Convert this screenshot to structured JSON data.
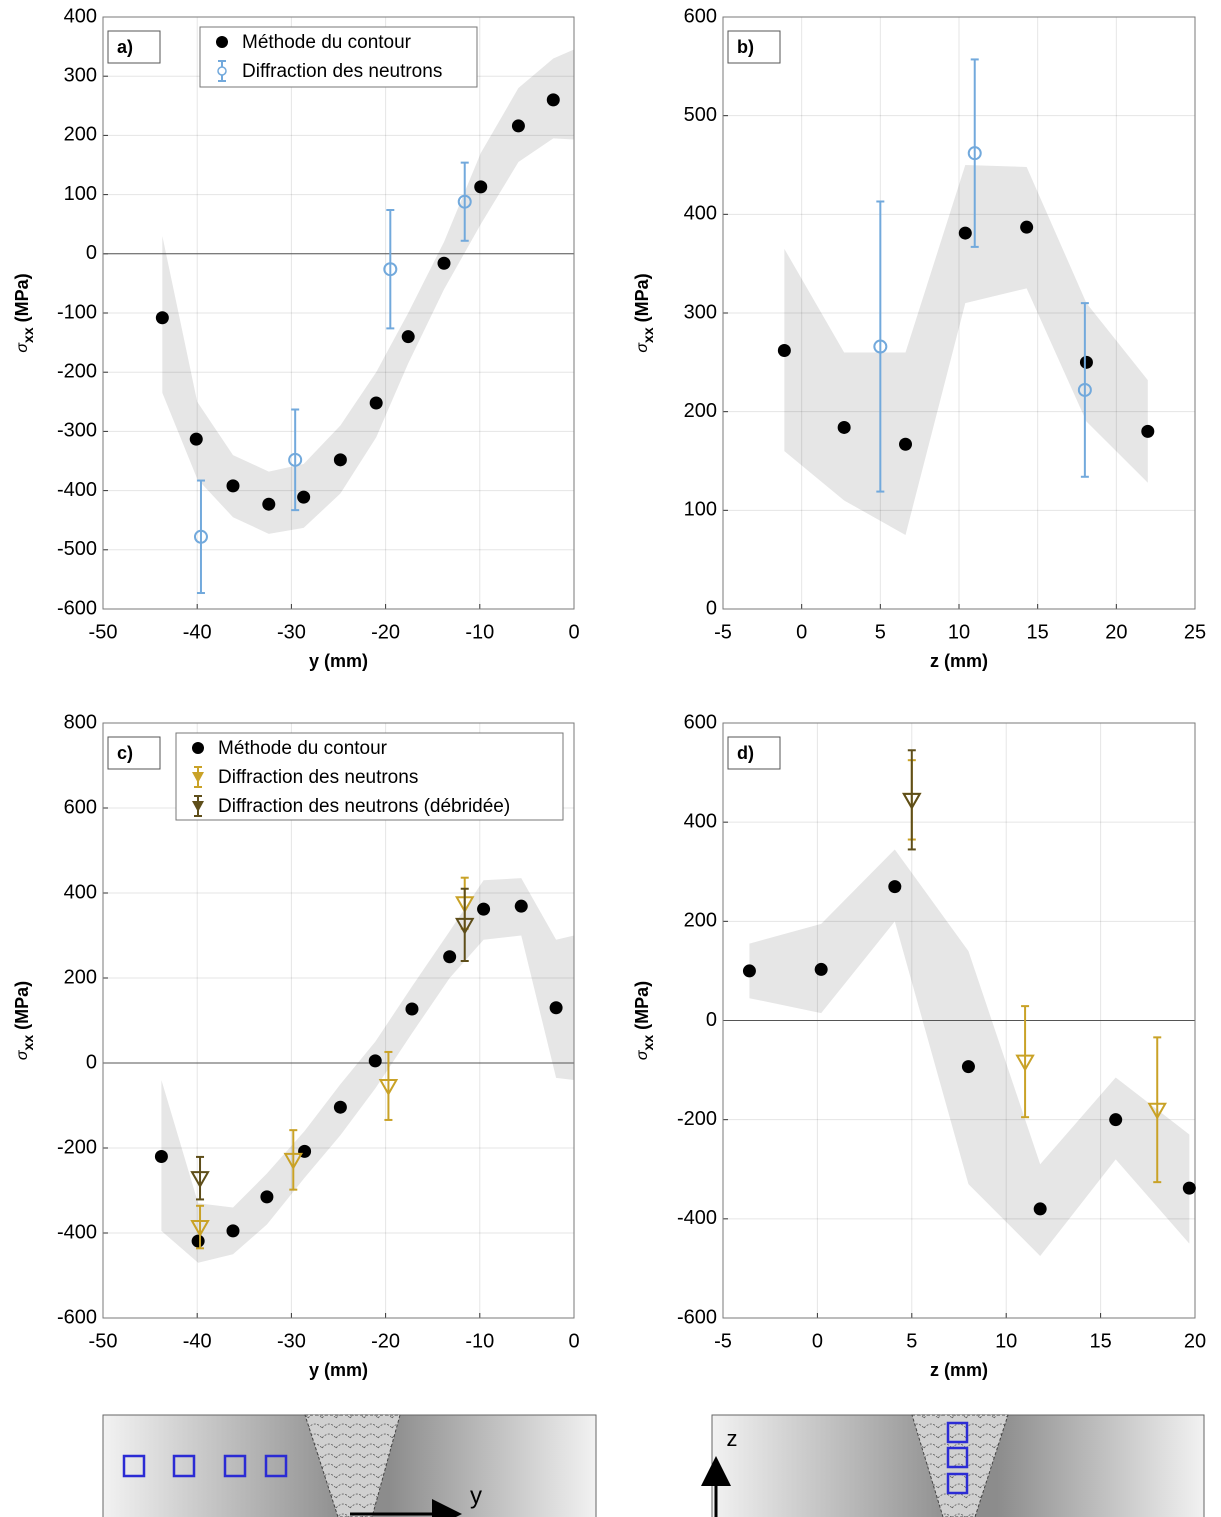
{
  "chart_data": [
    {
      "type": "scatter",
      "panel_label": "a)",
      "xlabel": "y (mm)",
      "ylabel": [
        "σ",
        "xx",
        "(MPa)"
      ],
      "xlim": [
        -50,
        0
      ],
      "ylim": [
        -600,
        400
      ],
      "xticks": [
        -50,
        -40,
        -30,
        -20,
        -10,
        0
      ],
      "yticks": [
        -600,
        -500,
        -400,
        -300,
        -200,
        -100,
        0,
        100,
        200,
        300,
        400
      ],
      "grid": true,
      "zero_line": true,
      "legend": "upper left",
      "band": {
        "color": "#e6e6e6",
        "x": [
          -43.7,
          -40.0,
          -36.2,
          -32.4,
          -28.7,
          -24.8,
          -21.0,
          -17.6,
          -13.8,
          -9.9,
          -5.9,
          -2.2,
          0
        ],
        "upper": [
          30,
          -250,
          -340,
          -368,
          -355,
          -290,
          -200,
          -100,
          20,
          170,
          280,
          330,
          345
        ],
        "lower": [
          -235,
          -380,
          -445,
          -473,
          -463,
          -405,
          -310,
          -185,
          -60,
          50,
          155,
          195,
          193
        ]
      },
      "series": [
        {
          "name": "Méthode du contour",
          "color": "#000000",
          "marker": "filled-circle",
          "x": [
            -43.7,
            -40.1,
            -36.2,
            -32.4,
            -28.7,
            -24.8,
            -21.0,
            -17.6,
            -13.8,
            -9.9,
            -5.9,
            -2.2
          ],
          "values": [
            -108,
            -313,
            -392,
            -423,
            -411,
            -348,
            -252,
            -140,
            -16,
            113,
            216,
            260
          ]
        },
        {
          "name": "Diffraction des neutrons",
          "color": "#72a9dc",
          "marker": "open-circle",
          "x": [
            -39.6,
            -29.6,
            -19.5,
            -11.6
          ],
          "values": [
            -478,
            -348,
            -26,
            88
          ],
          "errors": [
            95,
            85,
            100,
            66
          ]
        }
      ]
    },
    {
      "type": "scatter",
      "panel_label": "b)",
      "xlabel": "z (mm)",
      "ylabel": [
        "σ",
        "xx",
        "(MPa)"
      ],
      "xlim": [
        -5,
        25
      ],
      "ylim": [
        0,
        600
      ],
      "xticks": [
        -5,
        0,
        5,
        10,
        15,
        20,
        25
      ],
      "yticks": [
        0,
        100,
        200,
        300,
        400,
        500,
        600
      ],
      "grid": true,
      "zero_line": false,
      "legend": false,
      "band": {
        "color": "#e6e6e6",
        "x": [
          -1.1,
          2.7,
          6.6,
          10.4,
          14.3,
          18.1,
          22.0
        ],
        "upper": [
          365,
          260,
          260,
          450,
          448,
          310,
          232
        ],
        "lower": [
          160,
          110,
          75,
          310,
          325,
          190,
          128
        ]
      },
      "series": [
        {
          "color": "#000000",
          "marker": "filled-circle",
          "x": [
            -1.1,
            2.7,
            6.6,
            10.4,
            14.3,
            18.1,
            22.0
          ],
          "values": [
            262,
            184,
            167,
            381,
            387,
            250,
            180
          ]
        },
        {
          "color": "#72a9dc",
          "marker": "open-circle",
          "x": [
            5.0,
            11.0,
            18.0
          ],
          "values": [
            266,
            462,
            222
          ],
          "errors": [
            147,
            95,
            88
          ]
        }
      ]
    },
    {
      "type": "scatter",
      "panel_label": "c)",
      "xlabel": "y (mm)",
      "ylabel": [
        "σ",
        "xx",
        "(MPa)"
      ],
      "xlim": [
        -50,
        0
      ],
      "ylim": [
        -600,
        800
      ],
      "xticks": [
        -50,
        -40,
        -30,
        -20,
        -10,
        0
      ],
      "yticks": [
        -600,
        -400,
        -200,
        0,
        200,
        400,
        600,
        800
      ],
      "grid": true,
      "zero_line": true,
      "legend": "upper left",
      "band": {
        "color": "#e6e6e6",
        "x": [
          -43.8,
          -39.9,
          -36.2,
          -32.6,
          -28.6,
          -24.8,
          -21.1,
          -17.2,
          -13.2,
          -9.6,
          -5.6,
          -1.9,
          0
        ],
        "upper": [
          -40,
          -330,
          -340,
          -260,
          -160,
          -50,
          50,
          180,
          310,
          430,
          435,
          290,
          300
        ],
        "lower": [
          -395,
          -470,
          -450,
          -380,
          -270,
          -170,
          -60,
          70,
          200,
          290,
          300,
          -35,
          -40
        ]
      },
      "series": [
        {
          "name": "Méthode du contour",
          "color": "#000000",
          "marker": "filled-circle",
          "x": [
            -43.8,
            -39.9,
            -36.2,
            -32.6,
            -28.6,
            -24.8,
            -21.1,
            -17.2,
            -13.2,
            -9.6,
            -5.6,
            -1.9
          ],
          "values": [
            -220,
            -419,
            -395,
            -315,
            -208,
            -104,
            5,
            127,
            250,
            362,
            369,
            130
          ]
        },
        {
          "name": "Diffraction des neutrons",
          "color": "#c9a227",
          "marker": "open-triangle-down",
          "x": [
            -39.7,
            -29.8,
            -19.7,
            -11.6
          ],
          "values": [
            -386,
            -228,
            -54,
            376
          ],
          "errors": [
            50,
            70,
            80,
            60
          ]
        },
        {
          "name": "Diffraction des neutrons (débridée)",
          "color": "#5e4e1a",
          "marker": "open-triangle-down",
          "x": [
            -39.7,
            -11.6
          ],
          "values": [
            -271,
            325
          ],
          "errors": [
            50,
            85
          ]
        }
      ]
    },
    {
      "type": "scatter",
      "panel_label": "d)",
      "xlabel": "z (mm)",
      "ylabel": [
        "σ",
        "xx",
        "(MPa)"
      ],
      "xlim": [
        -5,
        20
      ],
      "ylim": [
        -600,
        600
      ],
      "xticks": [
        -5,
        0,
        5,
        10,
        15,
        20
      ],
      "yticks": [
        -600,
        -400,
        -200,
        0,
        200,
        400,
        600
      ],
      "grid": true,
      "zero_line": true,
      "legend": false,
      "band": {
        "color": "#e6e6e6",
        "x": [
          -3.6,
          0.2,
          4.1,
          8.0,
          11.8,
          15.8,
          19.7
        ],
        "upper": [
          155,
          195,
          345,
          140,
          -290,
          -115,
          -230
        ],
        "lower": [
          45,
          15,
          200,
          -330,
          -475,
          -280,
          -450
        ]
      },
      "series": [
        {
          "color": "#000000",
          "marker": "filled-circle",
          "x": [
            -3.6,
            0.2,
            4.1,
            8.0,
            11.8,
            15.8,
            19.7
          ],
          "values": [
            100,
            103,
            270,
            -93,
            -380,
            -200,
            -338
          ]
        },
        {
          "color": "#c9a227",
          "marker": "open-triangle-down",
          "x": [
            5.0,
            11.0,
            18.0
          ],
          "values": [
            445,
            -83,
            -180
          ],
          "errors": [
            80,
            112,
            146
          ]
        },
        {
          "color": "#5e4e1a",
          "marker": "open-triangle-down",
          "x": [
            5.0
          ],
          "values": [
            445
          ],
          "errors": [
            100
          ]
        }
      ]
    }
  ],
  "schematics": [
    {
      "axis_label": "y"
    },
    {
      "axis_label": "z"
    }
  ]
}
